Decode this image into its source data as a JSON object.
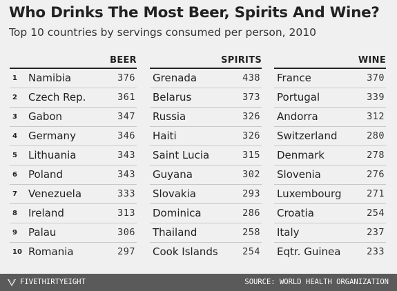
{
  "chart_data": {
    "type": "table",
    "title": "Who Drinks The Most Beer, Spirits And Wine?",
    "subtitle": "Top 10 countries by servings consumed per person, 2010",
    "ranks": [
      "1",
      "2",
      "3",
      "4",
      "5",
      "6",
      "7",
      "8",
      "9",
      "10"
    ],
    "tables": [
      {
        "header": "BEER",
        "rows": [
          {
            "country": "Namibia",
            "value": "376"
          },
          {
            "country": "Czech Rep.",
            "value": "361"
          },
          {
            "country": "Gabon",
            "value": "347"
          },
          {
            "country": "Germany",
            "value": "346"
          },
          {
            "country": "Lithuania",
            "value": "343"
          },
          {
            "country": "Poland",
            "value": "343"
          },
          {
            "country": "Venezuela",
            "value": "333"
          },
          {
            "country": "Ireland",
            "value": "313"
          },
          {
            "country": "Palau",
            "value": "306"
          },
          {
            "country": "Romania",
            "value": "297"
          }
        ]
      },
      {
        "header": "SPIRITS",
        "rows": [
          {
            "country": "Grenada",
            "value": "438"
          },
          {
            "country": "Belarus",
            "value": "373"
          },
          {
            "country": "Russia",
            "value": "326"
          },
          {
            "country": "Haiti",
            "value": "326"
          },
          {
            "country": "Saint Lucia",
            "value": "315"
          },
          {
            "country": "Guyana",
            "value": "302"
          },
          {
            "country": "Slovakia",
            "value": "293"
          },
          {
            "country": "Dominica",
            "value": "286"
          },
          {
            "country": "Thailand",
            "value": "258"
          },
          {
            "country": "Cook Islands",
            "value": "254"
          }
        ]
      },
      {
        "header": "WINE",
        "rows": [
          {
            "country": "France",
            "value": "370"
          },
          {
            "country": "Portugal",
            "value": "339"
          },
          {
            "country": "Andorra",
            "value": "312"
          },
          {
            "country": "Switzerland",
            "value": "280"
          },
          {
            "country": "Denmark",
            "value": "278"
          },
          {
            "country": "Slovenia",
            "value": "276"
          },
          {
            "country": "Luxembourg",
            "value": "271"
          },
          {
            "country": "Croatia",
            "value": "254"
          },
          {
            "country": "Italy",
            "value": "237"
          },
          {
            "country": "Eqtr. Guinea",
            "value": "233"
          }
        ]
      }
    ]
  },
  "footer": {
    "brand": "FIVETHIRTYEIGHT",
    "source": "SOURCE: WORLD HEALTH ORGANIZATION"
  },
  "colors": {
    "background": "#f0f0f0",
    "footer": "#5a5a5a",
    "text": "#222222"
  }
}
